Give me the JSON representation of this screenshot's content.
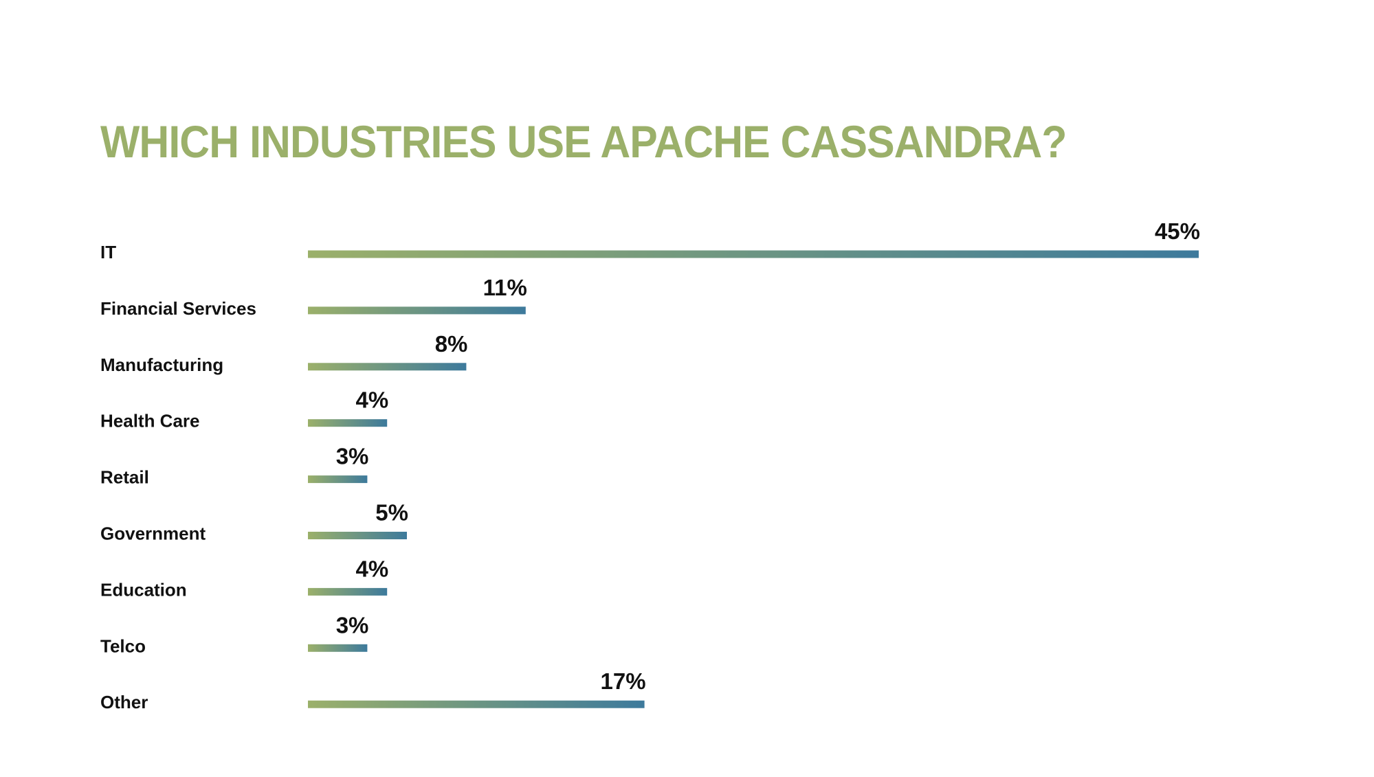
{
  "chart_data": {
    "type": "bar",
    "orientation": "horizontal",
    "title": "WHICH INDUSTRIES USE APACHE CASSANDRA?",
    "categories": [
      "IT",
      "Financial Services",
      "Manufacturing",
      "Health Care",
      "Retail",
      "Government",
      "Education",
      "Telco",
      "Other"
    ],
    "values": [
      45,
      11,
      8,
      4,
      3,
      5,
      4,
      3,
      17
    ],
    "value_labels": [
      "45%",
      "11%",
      "8%",
      "4%",
      "3%",
      "5%",
      "4%",
      "3%",
      "17%"
    ],
    "unit": "%",
    "xlabel": "",
    "ylabel": "",
    "xlim": [
      0,
      45
    ],
    "grid": false,
    "legend": "none",
    "colors": {
      "title": "#9bb06a",
      "bar_gradient_start": "#9bb06a",
      "bar_gradient_end": "#3d7a9c",
      "text": "#111111"
    }
  }
}
